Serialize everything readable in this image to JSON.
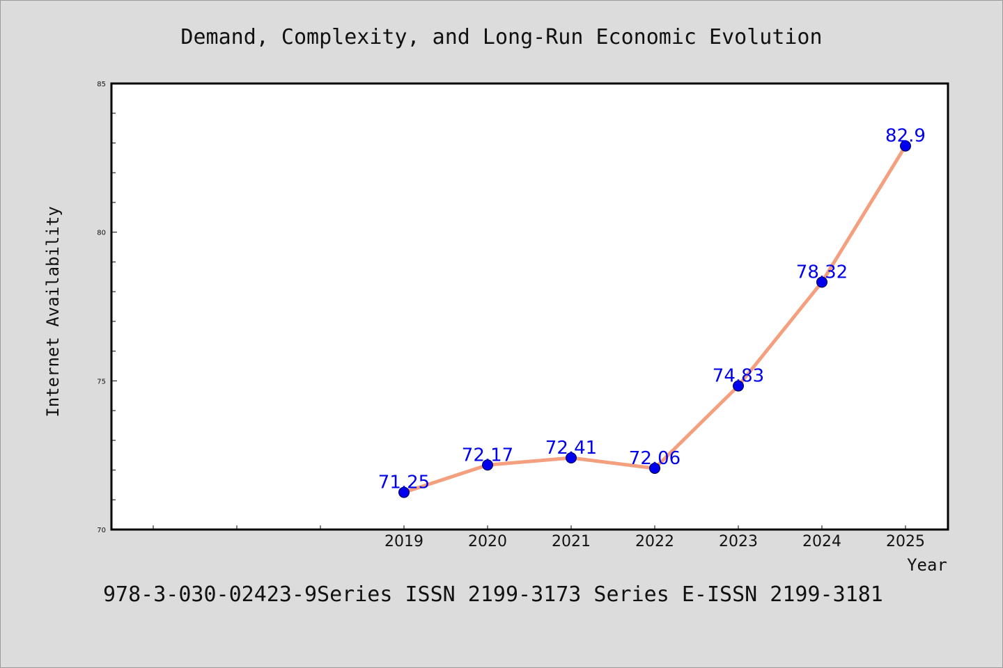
{
  "chart_data": {
    "type": "line",
    "title": "Demand, Complexity, and Long-Run Economic Evolution",
    "xlabel": "Year",
    "ylabel": "Internet Availability",
    "x": [
      "2019",
      "2020",
      "2021",
      "2022",
      "2023",
      "2024",
      "2025"
    ],
    "series": [
      {
        "values": [
          71.25,
          72.17,
          72.41,
          72.06,
          74.83,
          78.32,
          82.9
        ],
        "data_labels": [
          "71.25",
          "72.17",
          "72.41",
          "72.06",
          "74.83",
          "78.32",
          "82.9"
        ]
      }
    ],
    "ylim": [
      70,
      85
    ],
    "yticks": [
      "70",
      "75",
      "80",
      "85"
    ],
    "grid": false,
    "line_color": "#f4a07e",
    "marker_color": "#0000ee",
    "label_color": "#0000ee"
  },
  "footer": {
    "text": "978-3-030-02423-9Series ISSN 2199-3173 Series E-ISSN 2199-3181"
  }
}
